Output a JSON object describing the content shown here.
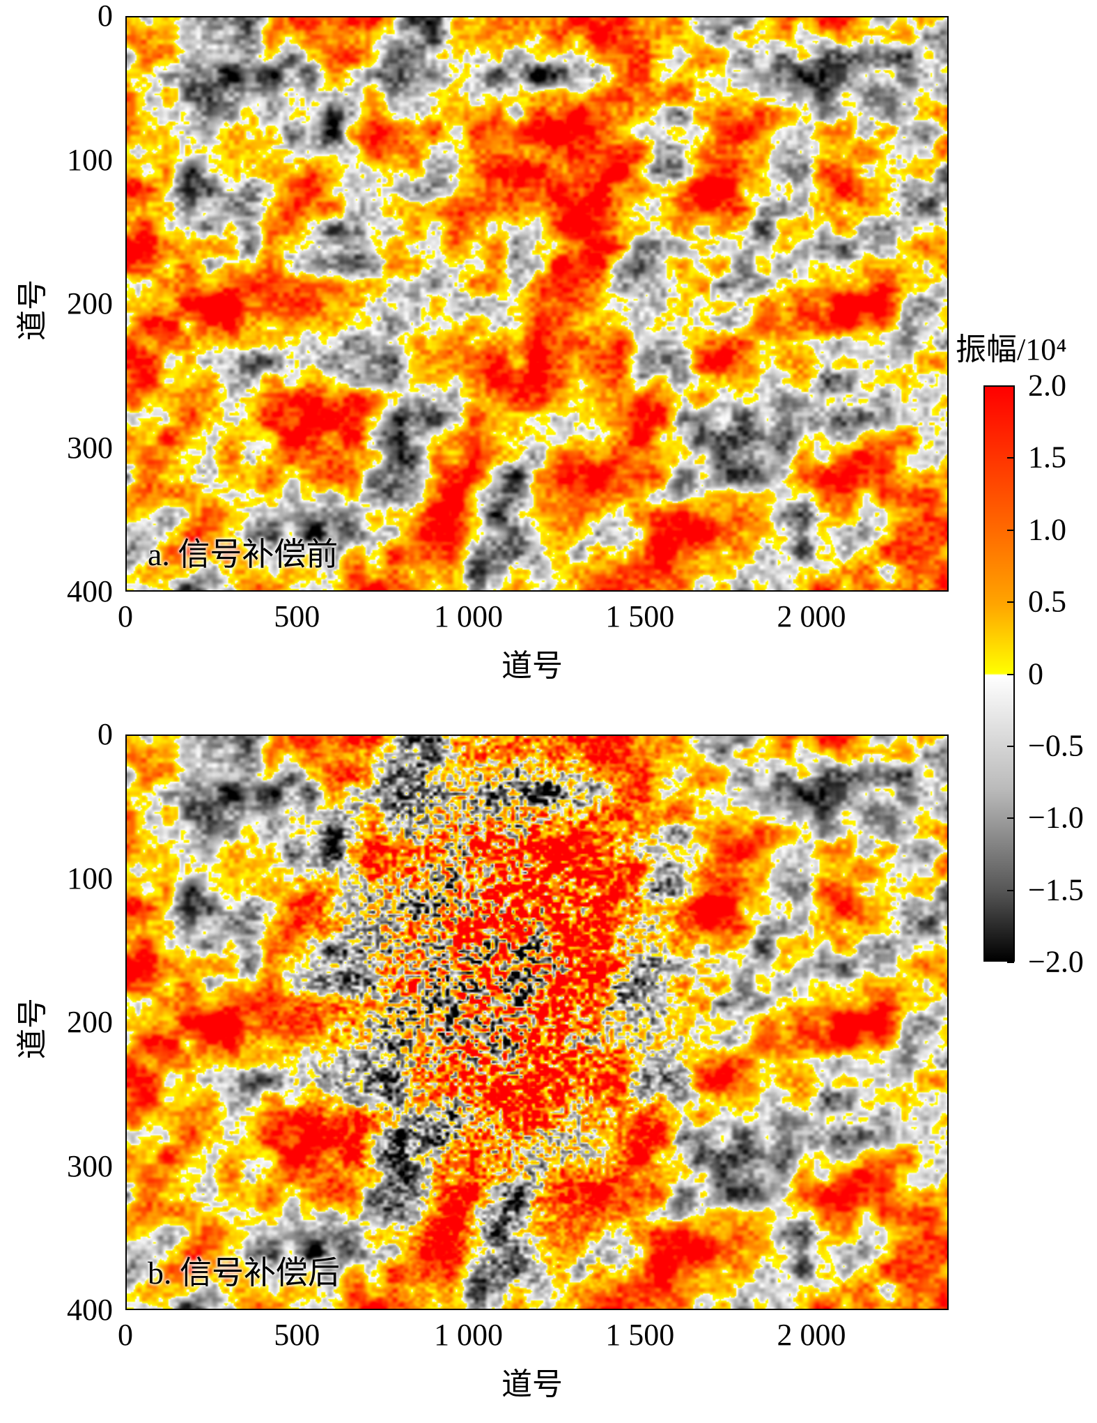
{
  "chart_data": [
    {
      "type": "heatmap",
      "panel_label": "a. 信号补偿前",
      "xlabel": "道号",
      "ylabel": "道号",
      "xlim": [
        0,
        2400
      ],
      "ylim": [
        400,
        0
      ],
      "xticks": [
        "0",
        "500",
        "1 000",
        "1 500",
        "2 000"
      ],
      "xtick_values": [
        0,
        500,
        1000,
        1500,
        2000
      ],
      "yticks": [
        "0",
        "100",
        "200",
        "300",
        "400"
      ],
      "ytick_values": [
        0,
        100,
        200,
        300,
        400
      ]
    },
    {
      "type": "heatmap",
      "panel_label": "b. 信号补偿后",
      "xlabel": "道号",
      "ylabel": "道号",
      "xlim": [
        0,
        2400
      ],
      "ylim": [
        400,
        0
      ],
      "xticks": [
        "0",
        "500",
        "1 000",
        "1 500",
        "2 000"
      ],
      "xtick_values": [
        0,
        500,
        1000,
        1500,
        2000
      ],
      "yticks": [
        "0",
        "100",
        "200",
        "300",
        "400"
      ],
      "ytick_values": [
        0,
        100,
        200,
        300,
        400
      ]
    }
  ],
  "colorbar": {
    "title": "振幅/10⁴",
    "range": [
      -2.0,
      2.0
    ],
    "ticks": [
      "2.0",
      "1.5",
      "1.0",
      "0.5",
      "0",
      "−0.5",
      "−1.0",
      "−1.5",
      "−2.0"
    ],
    "tick_values": [
      2.0,
      1.5,
      1.0,
      0.5,
      0,
      -0.5,
      -1.0,
      -1.5,
      -2.0
    ],
    "colors": {
      "max": "#ff0000",
      "mid_positive": "#ffa500",
      "zero_positive": "#ffff00",
      "zero": "#ffffff",
      "min": "#000000"
    }
  }
}
